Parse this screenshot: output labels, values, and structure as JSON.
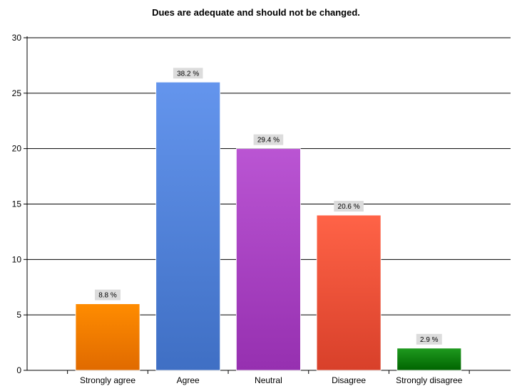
{
  "chart_data": {
    "type": "bar",
    "title": "Dues are adequate and should not be changed.",
    "xlabel": "",
    "ylabel": "",
    "categories": [
      "Strongly agree",
      "Agree",
      "Neutral",
      "Disagree",
      "Strongly disagree"
    ],
    "values": [
      6,
      26,
      20,
      14,
      2
    ],
    "data_labels": [
      "8.8 %",
      "38.2 %",
      "29.4 %",
      "20.6 %",
      "2.9 %"
    ],
    "ylim": [
      0,
      30
    ],
    "yticks": [
      0,
      5,
      10,
      15,
      20,
      25,
      30
    ],
    "grid": true,
    "legend": "none",
    "colors": [
      {
        "top": "#ff8c00",
        "bottom": "#e06a00"
      },
      {
        "top": "#6495ed",
        "bottom": "#3f6fc4"
      },
      {
        "top": "#ba55d3",
        "bottom": "#9630b0"
      },
      {
        "top": "#ff6347",
        "bottom": "#d8402a"
      },
      {
        "top": "#1f9a1f",
        "bottom": "#006400"
      }
    ]
  }
}
